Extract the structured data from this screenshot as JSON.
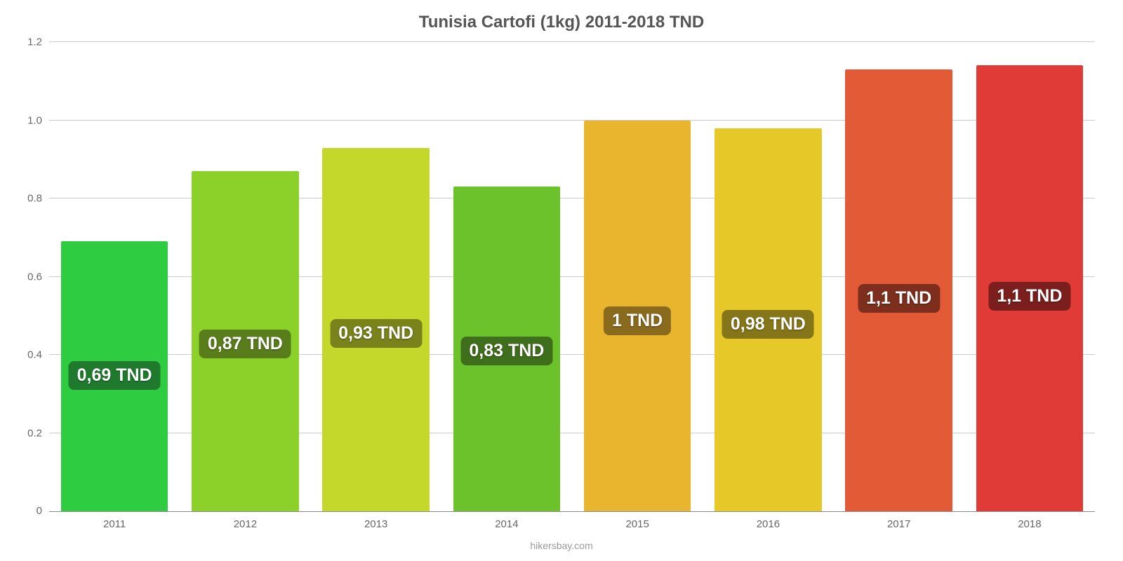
{
  "chart": {
    "type": "bar",
    "title": "Tunisia Cartofi (1kg) 2011-2018 TND",
    "title_fontsize": 24,
    "title_color": "#555555",
    "background_color": "#ffffff",
    "grid_color": "#cccccc",
    "axis_text_color": "#666666",
    "axis_fontsize": 15,
    "ylim": [
      0,
      1.2
    ],
    "ytick_step": 0.2,
    "yticks": [
      "0",
      "0.2",
      "0.4",
      "0.6",
      "0.8",
      "1.0",
      "1.2"
    ],
    "bar_width_pct": 82,
    "value_badge_fontsize": 25,
    "value_badge_radius": 8,
    "source": "hikersbay.com",
    "series": [
      {
        "year": "2011",
        "value": 0.69,
        "label": "0,69 TND",
        "bar_color": "#2ecc40",
        "badge_bg": "#1f7a2e"
      },
      {
        "year": "2012",
        "value": 0.87,
        "label": "0,87 TND",
        "bar_color": "#8bd12a",
        "badge_bg": "#5a7d1c"
      },
      {
        "year": "2013",
        "value": 0.93,
        "label": "0,93 TND",
        "bar_color": "#c4d82c",
        "badge_bg": "#7a821c"
      },
      {
        "year": "2014",
        "value": 0.83,
        "label": "0,83 TND",
        "bar_color": "#6bc22b",
        "badge_bg": "#3f6e1c"
      },
      {
        "year": "2015",
        "value": 1.0,
        "label": "1 TND",
        "bar_color": "#e9b42e",
        "badge_bg": "#8a6a1c"
      },
      {
        "year": "2016",
        "value": 0.98,
        "label": "0,98 TND",
        "bar_color": "#e6c829",
        "badge_bg": "#86761a"
      },
      {
        "year": "2017",
        "value": 1.13,
        "label": "1,1 TND",
        "bar_color": "#e35b36",
        "badge_bg": "#7d2e1d"
      },
      {
        "year": "2018",
        "value": 1.14,
        "label": "1,1 TND",
        "bar_color": "#e03b36",
        "badge_bg": "#7a1f1d"
      }
    ]
  }
}
